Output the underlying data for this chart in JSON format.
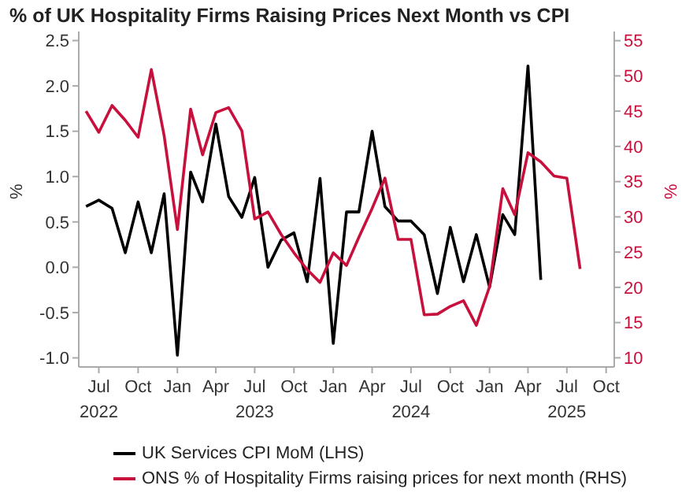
{
  "chart_data": {
    "type": "line",
    "title": "% of UK Hospitality Firms Raising Prices Next Month vs CPI",
    "ylabel": "%",
    "y2label": "%",
    "x": [
      "2022-06",
      "2022-07",
      "2022-08",
      "2022-09",
      "2022-10",
      "2022-11",
      "2022-12",
      "2023-01",
      "2023-02",
      "2023-03",
      "2023-04",
      "2023-05",
      "2023-06",
      "2023-07",
      "2023-08",
      "2023-09",
      "2023-10",
      "2023-11",
      "2023-12",
      "2024-01",
      "2024-02",
      "2024-03",
      "2024-04",
      "2024-05",
      "2024-06",
      "2024-07",
      "2024-08",
      "2024-09",
      "2024-10",
      "2024-11",
      "2024-12",
      "2025-01",
      "2025-02",
      "2025-03",
      "2025-04",
      "2025-05",
      "2025-06",
      "2025-07",
      "2025-08"
    ],
    "series": [
      {
        "name": "UK Services CPI MoM (LHS)",
        "color": "#000000",
        "values": [
          0.67,
          0.74,
          0.65,
          0.16,
          0.72,
          0.16,
          0.81,
          -0.97,
          1.05,
          0.72,
          1.58,
          0.78,
          0.55,
          0.99,
          0.0,
          0.3,
          0.38,
          -0.16,
          0.98,
          -0.84,
          0.61,
          0.61,
          1.5,
          0.67,
          0.51,
          0.51,
          0.36,
          -0.29,
          0.44,
          -0.16,
          0.36,
          -0.22,
          0.58,
          0.36,
          2.22,
          -0.14,
          null,
          null,
          null
        ]
      },
      {
        "name": "ONS % of Hospitality Firms raising prices for next month (RHS)",
        "color": "#c8103c",
        "axis": "y2",
        "values": [
          45.0,
          42.0,
          45.8,
          43.7,
          41.3,
          50.9,
          41.5,
          28.2,
          45.3,
          38.8,
          44.8,
          45.5,
          42.2,
          29.7,
          30.7,
          27.5,
          24.9,
          22.5,
          20.7,
          24.9,
          23.1,
          27.1,
          31.2,
          35.5,
          26.8,
          26.8,
          16.1,
          16.2,
          17.3,
          18.1,
          14.6,
          20.1,
          34.0,
          30.3,
          39.1,
          37.8,
          35.8,
          35.5,
          22.6
        ]
      }
    ],
    "xlim": [
      "2022-05-15",
      "2025-10-20"
    ],
    "xticks": [
      {
        "value": "2022-07",
        "label": "Jul\n2022"
      },
      {
        "value": "2022-10",
        "label": "Oct"
      },
      {
        "value": "2023-01",
        "label": "Jan"
      },
      {
        "value": "2023-04",
        "label": "Apr"
      },
      {
        "value": "2023-07",
        "label": "Jul\n2023"
      },
      {
        "value": "2023-10",
        "label": "Oct"
      },
      {
        "value": "2024-01",
        "label": "Jan"
      },
      {
        "value": "2024-04",
        "label": "Apr"
      },
      {
        "value": "2024-07",
        "label": "Jul\n2024"
      },
      {
        "value": "2024-10",
        "label": "Oct"
      },
      {
        "value": "2025-01",
        "label": "Jan"
      },
      {
        "value": "2025-04",
        "label": "Apr"
      },
      {
        "value": "2025-07",
        "label": "Jul\n2025"
      },
      {
        "value": "2025-10",
        "label": "Oct"
      }
    ],
    "ylim": [
      -1.1,
      2.6
    ],
    "yticks": [
      {
        "value": -1.0,
        "label": "-1.0"
      },
      {
        "value": -0.5,
        "label": "-0.5"
      },
      {
        "value": 0,
        "label": "0.0"
      },
      {
        "value": 0.5,
        "label": "0.5"
      },
      {
        "value": 1.0,
        "label": "1.0"
      },
      {
        "value": 1.5,
        "label": "1.5"
      },
      {
        "value": 2.0,
        "label": "2.0"
      },
      {
        "value": 2.5,
        "label": "2.5"
      }
    ],
    "y2lim": [
      8.7,
      56.3
    ],
    "y2ticks": [
      10,
      15,
      20,
      25,
      30,
      35,
      40,
      45,
      50,
      55
    ],
    "grid": false,
    "legend": "bottom",
    "marker": "none",
    "line_style": "solid"
  }
}
